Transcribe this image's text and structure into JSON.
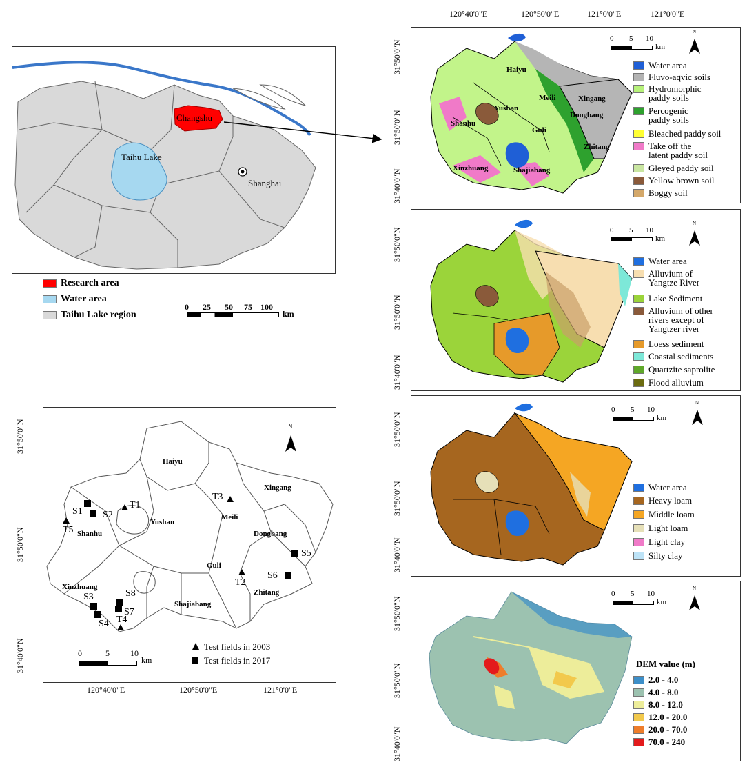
{
  "location_map": {
    "labels": {
      "changshu": "Changshu",
      "taihu_lake": "Taihu Lake",
      "shanghai": "Shanghai"
    },
    "legend": [
      {
        "label": "Research area",
        "color": "#ff0000"
      },
      {
        "label": "Water area",
        "color": "#a6d8f0"
      },
      {
        "label": "Taihu Lake region",
        "color": "#d9d9d9"
      }
    ],
    "scale": {
      "ticks": [
        "0",
        "25",
        "50",
        "75",
        "100"
      ],
      "unit": "km"
    }
  },
  "sample_map": {
    "lat_labels": [
      "31°50'0\"N",
      "31°50'0\"N",
      "31°40'0\"N"
    ],
    "lon_labels": [
      "120°40'0\"E",
      "120°50'0\"E",
      "121°0'0\"E"
    ],
    "towns": [
      "Haiyu",
      "Xingang",
      "Meili",
      "Yushan",
      "Shanhu",
      "Dongbang",
      "Guli",
      "Xinzhuang",
      "Shajiabang",
      "Zhitang"
    ],
    "points_2003": [
      "T1",
      "T2",
      "T3",
      "T4",
      "T5"
    ],
    "points_2017": [
      "S1",
      "S2",
      "S3",
      "S4",
      "S5",
      "S6",
      "S7",
      "S8"
    ],
    "legend": [
      {
        "label": "Test fields in 2003",
        "symbol": "triangle"
      },
      {
        "label": "Test fields in 2017",
        "symbol": "square"
      }
    ],
    "scale": {
      "ticks": [
        "0",
        "5",
        "10"
      ],
      "unit": "km"
    },
    "north": "N"
  },
  "soil_map": {
    "top_lon_labels": [
      "120°40'0\"E",
      "120°50'0\"E",
      "121°0'0\"E",
      "121°0'0\"E"
    ],
    "lat_labels": [
      "31°50'0\"N",
      "31°50'0\"N",
      "31°40'0\"N"
    ],
    "towns": [
      "Haiyu",
      "Meili",
      "Xingang",
      "Yushan",
      "Dongbang",
      "Shanhu",
      "Guli",
      "Zhitang",
      "Xinzhuang",
      "Shajiabang"
    ],
    "legend": [
      {
        "label": "Water area",
        "color": "#1f5fd6"
      },
      {
        "label": "Fluvo-aqvic soils",
        "color": "#b3b3b3"
      },
      {
        "label": "Hydromorphic\npaddy soils",
        "color": "#b7f27a"
      },
      {
        "label": "Percogenic\npaddy soils",
        "color": "#2ea12e"
      },
      {
        "label": "Bleached paddy soil",
        "color": "#ffff33"
      },
      {
        "label": "Take off the\nlatent paddy soil",
        "color": "#f07ac8"
      },
      {
        "label": "Gleyed  paddy soil",
        "color": "#c9e6a1"
      },
      {
        "label": "Yellow brown soil",
        "color": "#8a5a3a"
      },
      {
        "label": "Boggy soil",
        "color": "#d4a86a"
      }
    ],
    "scale": {
      "ticks": [
        "0",
        "5",
        "10"
      ],
      "unit": "km"
    },
    "north": "N"
  },
  "parent_material_map": {
    "lat_labels": [
      "31°50'0\"N",
      "31°50'0\"N",
      "31°40'0\"N"
    ],
    "legend": [
      {
        "label": "Water area",
        "color": "#1f6fe0"
      },
      {
        "label": "Alluvium of\nYangtze River",
        "color": "#f7deb0"
      },
      {
        "label": "Lake Sediment",
        "color": "#9bd43a"
      },
      {
        "label": "Alluvium of other\nrivers except of\nYangtzer river",
        "color": "#8a5a3a"
      },
      {
        "label": "Loess sediment",
        "color": "#e69a2a"
      },
      {
        "label": "Coastal sediments",
        "color": "#7de8d8"
      },
      {
        "label": "Quartzite saprolite",
        "color": "#5fa82a"
      },
      {
        "label": "Flood alluvium",
        "color": "#6b6b10"
      }
    ],
    "scale": {
      "ticks": [
        "0",
        "5",
        "10"
      ],
      "unit": "km"
    },
    "north": "N"
  },
  "texture_map": {
    "lat_labels": [
      "31°50'0\"N",
      "31°50'0\"N",
      "31°40'0\"N"
    ],
    "legend": [
      {
        "label": "Water area",
        "color": "#1f6fe0"
      },
      {
        "label": "Heavy loam",
        "color": "#a6661f"
      },
      {
        "label": "Middle loam",
        "color": "#f5a623"
      },
      {
        "label": "Light loam",
        "color": "#e6e0b8"
      },
      {
        "label": "Light clay",
        "color": "#f07ac8"
      },
      {
        "label": "Silty clay",
        "color": "#bde3f7"
      }
    ],
    "scale": {
      "ticks": [
        "0",
        "5",
        "10"
      ],
      "unit": "km"
    },
    "north": "N"
  },
  "dem_map": {
    "lat_labels": [
      "31°50'0\"N",
      "31°50'0\"N",
      "31°40'0\"N"
    ],
    "legend_title": "DEM value (m)",
    "legend": [
      {
        "label": "2.0 - 4.0",
        "color": "#3d8fc9"
      },
      {
        "label": "4.0 - 8.0",
        "color": "#9cc2b0"
      },
      {
        "label": "8.0 - 12.0",
        "color": "#eded9a"
      },
      {
        "label": "12.0 - 20.0",
        "color": "#f2c94c"
      },
      {
        "label": "20.0 - 70.0",
        "color": "#ee7d2b"
      },
      {
        "label": "70.0 - 240",
        "color": "#e31a1c"
      }
    ],
    "scale": {
      "ticks": [
        "0",
        "5",
        "10"
      ],
      "unit": "km"
    },
    "north": "N"
  }
}
